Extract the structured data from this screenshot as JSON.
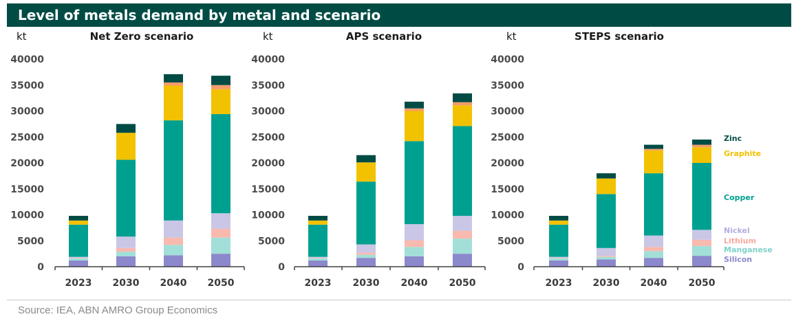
{
  "title": "Level of metals demand by metal and scenario",
  "source": "Source: IEA, ABN AMRO Group Economics",
  "colors": {
    "Silicon": "#8c88cc",
    "Manganese": "#a2dfd8",
    "Lithium": "#f9b9ae",
    "Nickel": "#cac6e6",
    "Copper": "#00a090",
    "Graphite": "#f2c100",
    "Zinc": "#004c45",
    "Other": "#f39c6b"
  },
  "chart_data": [
    {
      "type": "bar",
      "stacked": true,
      "title": "Net Zero scenario",
      "ylabel": "kt",
      "ylim": [
        0,
        40000
      ],
      "yticks": [
        "0",
        "5000",
        "10000",
        "15000",
        "20000",
        "25000",
        "30000",
        "35000",
        "40000"
      ],
      "categories": [
        "2023",
        "2030",
        "2040",
        "2050"
      ],
      "series": [
        {
          "name": "Silicon",
          "values": [
            1200,
            2000,
            2200,
            2500
          ]
        },
        {
          "name": "Manganese",
          "values": [
            400,
            900,
            2000,
            3100
          ]
        },
        {
          "name": "Lithium",
          "values": [
            100,
            700,
            1400,
            1700
          ]
        },
        {
          "name": "Nickel",
          "values": [
            200,
            2200,
            3300,
            3000
          ]
        },
        {
          "name": "Copper",
          "values": [
            6200,
            14800,
            19300,
            19100
          ]
        },
        {
          "name": "Graphite",
          "values": [
            800,
            5200,
            6700,
            4800
          ]
        },
        {
          "name": "",
          "values": [
            0,
            0,
            600,
            800
          ]
        },
        {
          "name": "Zinc",
          "values": [
            900,
            1700,
            1600,
            1800
          ]
        }
      ]
    },
    {
      "type": "bar",
      "stacked": true,
      "title": "APS scenario",
      "ylabel": "kt",
      "ylim": [
        0,
        40000
      ],
      "yticks": [
        "0",
        "5000",
        "10000",
        "15000",
        "20000",
        "25000",
        "30000",
        "35000",
        "40000"
      ],
      "categories": [
        "2023",
        "2030",
        "2040",
        "2050"
      ],
      "series": [
        {
          "name": "Silicon",
          "values": [
            1200,
            1700,
            2000,
            2500
          ]
        },
        {
          "name": "Manganese",
          "values": [
            400,
            600,
            1800,
            2900
          ]
        },
        {
          "name": "Lithium",
          "values": [
            100,
            400,
            1300,
            1500
          ]
        },
        {
          "name": "Nickel",
          "values": [
            200,
            1600,
            3100,
            2900
          ]
        },
        {
          "name": "Copper",
          "values": [
            6200,
            12100,
            16000,
            17300
          ]
        },
        {
          "name": "Graphite",
          "values": [
            800,
            3700,
            5800,
            4000
          ]
        },
        {
          "name": "",
          "values": [
            0,
            0,
            500,
            600
          ]
        },
        {
          "name": "Zinc",
          "values": [
            900,
            1400,
            1300,
            1700
          ]
        }
      ]
    },
    {
      "type": "bar",
      "stacked": true,
      "title": "STEPS scenario",
      "ylabel": "kt",
      "ylim": [
        0,
        40000
      ],
      "yticks": [
        "0",
        "5000",
        "10000",
        "15000",
        "20000",
        "25000",
        "30000",
        "35000",
        "40000"
      ],
      "categories": [
        "2023",
        "2030",
        "2040",
        "2050"
      ],
      "series": [
        {
          "name": "Silicon",
          "values": [
            1200,
            1400,
            1700,
            2100
          ]
        },
        {
          "name": "Manganese",
          "values": [
            400,
            500,
            1300,
            1900
          ]
        },
        {
          "name": "Lithium",
          "values": [
            100,
            200,
            800,
            1200
          ]
        },
        {
          "name": "Nickel",
          "values": [
            200,
            1500,
            2200,
            1900
          ]
        },
        {
          "name": "Copper",
          "values": [
            6200,
            10400,
            12000,
            12900
          ]
        },
        {
          "name": "Graphite",
          "values": [
            800,
            3000,
            4400,
            3000
          ]
        },
        {
          "name": "",
          "values": [
            0,
            0,
            300,
            500
          ]
        },
        {
          "name": "Zinc",
          "values": [
            900,
            1000,
            800,
            1000
          ]
        }
      ],
      "legend": [
        "Zinc",
        "Graphite",
        "Copper",
        "Nickel",
        "Lithium",
        "Manganese",
        "Silicon"
      ],
      "legend_position": "right"
    }
  ]
}
